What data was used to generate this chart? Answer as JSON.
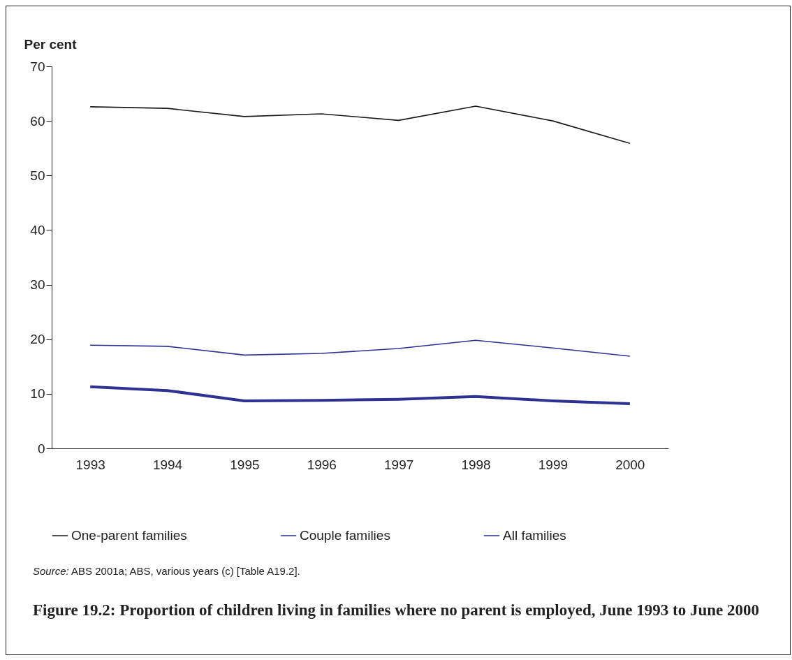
{
  "chart_data": {
    "type": "line",
    "title": "Figure 19.2: Proportion of children living in families where no parent is employed, June 1993 to June 2000",
    "ylabel": "Per cent",
    "annotations": [
      "Source: ABS 2001a; ABS, various years (c) [Table A19.2]."
    ],
    "categories": [
      "1993",
      "1994",
      "1995",
      "1996",
      "1997",
      "1998",
      "1999",
      "2000"
    ],
    "series": [
      {
        "name": "One-parent families",
        "color": "#1a1a1a",
        "values": [
          62.6,
          62.3,
          60.8,
          61.3,
          60.1,
          62.7,
          60.0,
          55.9
        ]
      },
      {
        "name": "Couple families",
        "color": "#2e3192",
        "values": [
          11.3,
          10.6,
          8.7,
          8.8,
          9.0,
          9.5,
          8.7,
          8.2
        ]
      },
      {
        "name": "All families",
        "color": "#2e3192",
        "values": [
          18.9,
          18.7,
          17.1,
          17.4,
          18.3,
          19.8,
          18.4,
          16.9
        ]
      }
    ],
    "ylim": [
      0,
      70
    ],
    "yticks": [
      0,
      10,
      20,
      30,
      40,
      50,
      60,
      70
    ],
    "grid": false,
    "legend": "bottom"
  }
}
